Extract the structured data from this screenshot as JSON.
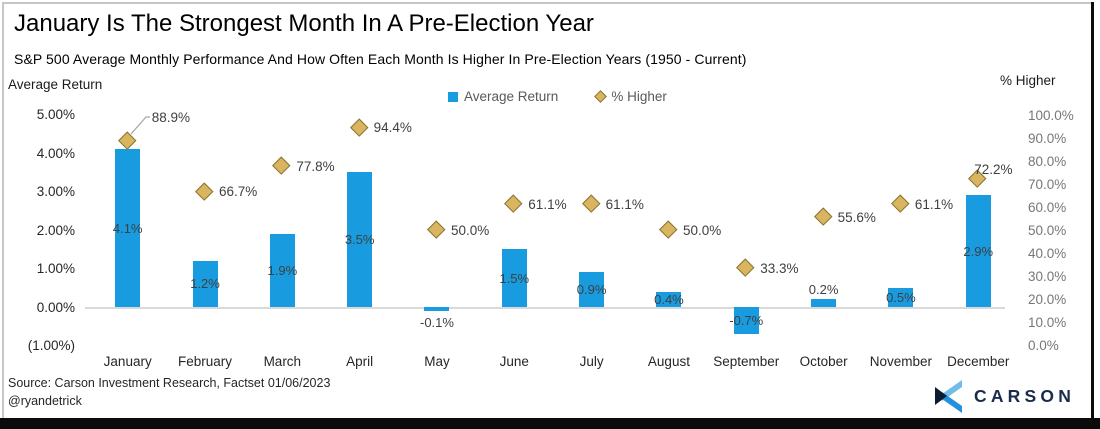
{
  "header": {
    "title": "January Is The Strongest Month In A Pre-Election Year",
    "subtitle": "S&P 500 Average Monthly Performance And How Often Each Month Is Higher In Pre-Election Years (1950 - Current)"
  },
  "axes": {
    "left_title": "Average Return",
    "right_title": "% Higher",
    "left_ticks": [
      {
        "label": "5.00%",
        "value": 5
      },
      {
        "label": "4.00%",
        "value": 4
      },
      {
        "label": "3.00%",
        "value": 3
      },
      {
        "label": "2.00%",
        "value": 2
      },
      {
        "label": "1.00%",
        "value": 1
      },
      {
        "label": "0.00%",
        "value": 0
      },
      {
        "label": "(1.00%)",
        "value": -1
      }
    ],
    "right_ticks": [
      {
        "label": "100.0%",
        "value": 100
      },
      {
        "label": "90.0%",
        "value": 90
      },
      {
        "label": "80.0%",
        "value": 80
      },
      {
        "label": "70.0%",
        "value": 70
      },
      {
        "label": "60.0%",
        "value": 60
      },
      {
        "label": "50.0%",
        "value": 50
      },
      {
        "label": "40.0%",
        "value": 40
      },
      {
        "label": "30.0%",
        "value": 30
      },
      {
        "label": "20.0%",
        "value": 20
      },
      {
        "label": "10.0%",
        "value": 10
      },
      {
        "label": "0.0%",
        "value": 0
      }
    ]
  },
  "legend": {
    "items": [
      {
        "label": "Average Return",
        "marker": "square",
        "color": "#189CDF"
      },
      {
        "label": "% Higher",
        "marker": "diamond",
        "color": "#D9B55F"
      }
    ]
  },
  "chart_data": {
    "type": "bar",
    "subtype": "combo-bar-and-diamond-scatter",
    "title": "January Is The Strongest Month In A Pre-Election Year",
    "subtitle": "S&P 500 Average Monthly Performance And How Often Each Month Is Higher In Pre-Election Years (1950 - Current)",
    "categories": [
      "January",
      "February",
      "March",
      "April",
      "May",
      "June",
      "July",
      "August",
      "September",
      "October",
      "November",
      "December"
    ],
    "series": [
      {
        "name": "Average Return",
        "type": "bar",
        "axis": "left",
        "color": "#189CDF",
        "values": [
          4.1,
          1.2,
          1.9,
          3.5,
          -0.1,
          1.5,
          0.9,
          0.4,
          -0.7,
          0.2,
          0.5,
          2.9
        ],
        "labels": [
          "4.1%",
          "1.2%",
          "1.9%",
          "3.5%",
          "-0.1%",
          "1.5%",
          "0.9%",
          "0.4%",
          "-0.7%",
          "0.2%",
          "0.5%",
          "2.9%"
        ],
        "label_pos": [
          "center",
          "center",
          "center",
          "center",
          "below",
          "center",
          "center",
          "center",
          "center",
          "above",
          "center",
          "center"
        ]
      },
      {
        "name": "% Higher",
        "type": "scatter",
        "marker": "diamond",
        "axis": "right",
        "color": "#D9B55F",
        "values": [
          88.9,
          66.7,
          77.8,
          94.4,
          50.0,
          61.1,
          61.1,
          50.0,
          33.3,
          55.6,
          61.1,
          72.2
        ],
        "labels": [
          "88.9%",
          "66.7%",
          "77.8%",
          "94.4%",
          "50.0%",
          "61.1%",
          "61.1%",
          "50.0%",
          "33.3%",
          "55.6%",
          "61.1%",
          "72.2%"
        ],
        "label_side": [
          "leader",
          "right",
          "right",
          "right",
          "right",
          "right",
          "right",
          "right",
          "right",
          "right",
          "right",
          "above"
        ]
      }
    ],
    "left_axis": {
      "label": "Average Return",
      "min": -1,
      "max": 5
    },
    "right_axis": {
      "label": "% Higher",
      "min": 0,
      "max": 100
    },
    "grid": false,
    "legend_position": "top-center"
  },
  "footer": {
    "source": "Source: Carson Investment Research, Factset 01/06/2023",
    "handle": "@ryandetrick",
    "brand": "CARSON"
  }
}
